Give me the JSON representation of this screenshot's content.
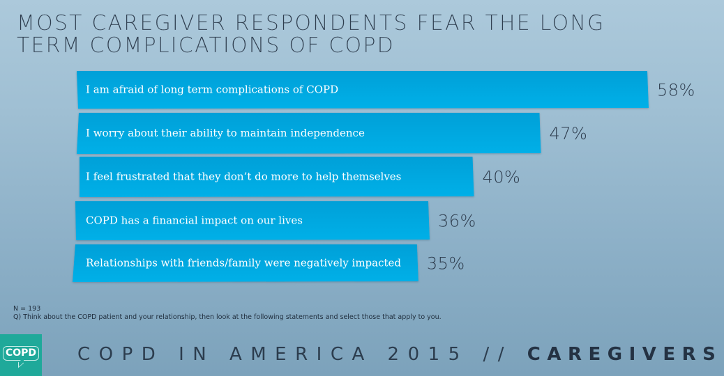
{
  "title": {
    "line1": "MOST CAREGIVER RESPONDENTS FEAR THE LONG",
    "line2": "TERM COMPLICATIONS OF COPD"
  },
  "chart_data": {
    "type": "bar",
    "orientation": "horizontal",
    "title": "Most caregiver respondents fear the long term complications of COPD",
    "categories": [
      "I am afraid of long term complications of COPD",
      "I worry about their ability to maintain independence",
      "I feel frustrated that they don’t do more to help themselves",
      "COPD has a financial impact on our lives",
      "Relationships with friends/family were negatively impacted"
    ],
    "values": [
      58,
      47,
      40,
      36,
      35
    ],
    "value_labels": [
      "58%",
      "47%",
      "40%",
      "36%",
      "35%"
    ],
    "unit": "%",
    "xlabel": "",
    "ylabel": "",
    "grid": false,
    "legend": "none",
    "bar_color": "#00a9e2"
  },
  "notes": {
    "sample": "N = 193",
    "question": "Q) Think about the COPD patient and your relationship, then look at the following statements and select those that apply to you."
  },
  "logo": {
    "text": "COPD",
    "color": "#1fa99a"
  },
  "footer": {
    "light_text": "COPD IN AMERICA 2015 //",
    "bold_text": "CAREGIVERS"
  }
}
